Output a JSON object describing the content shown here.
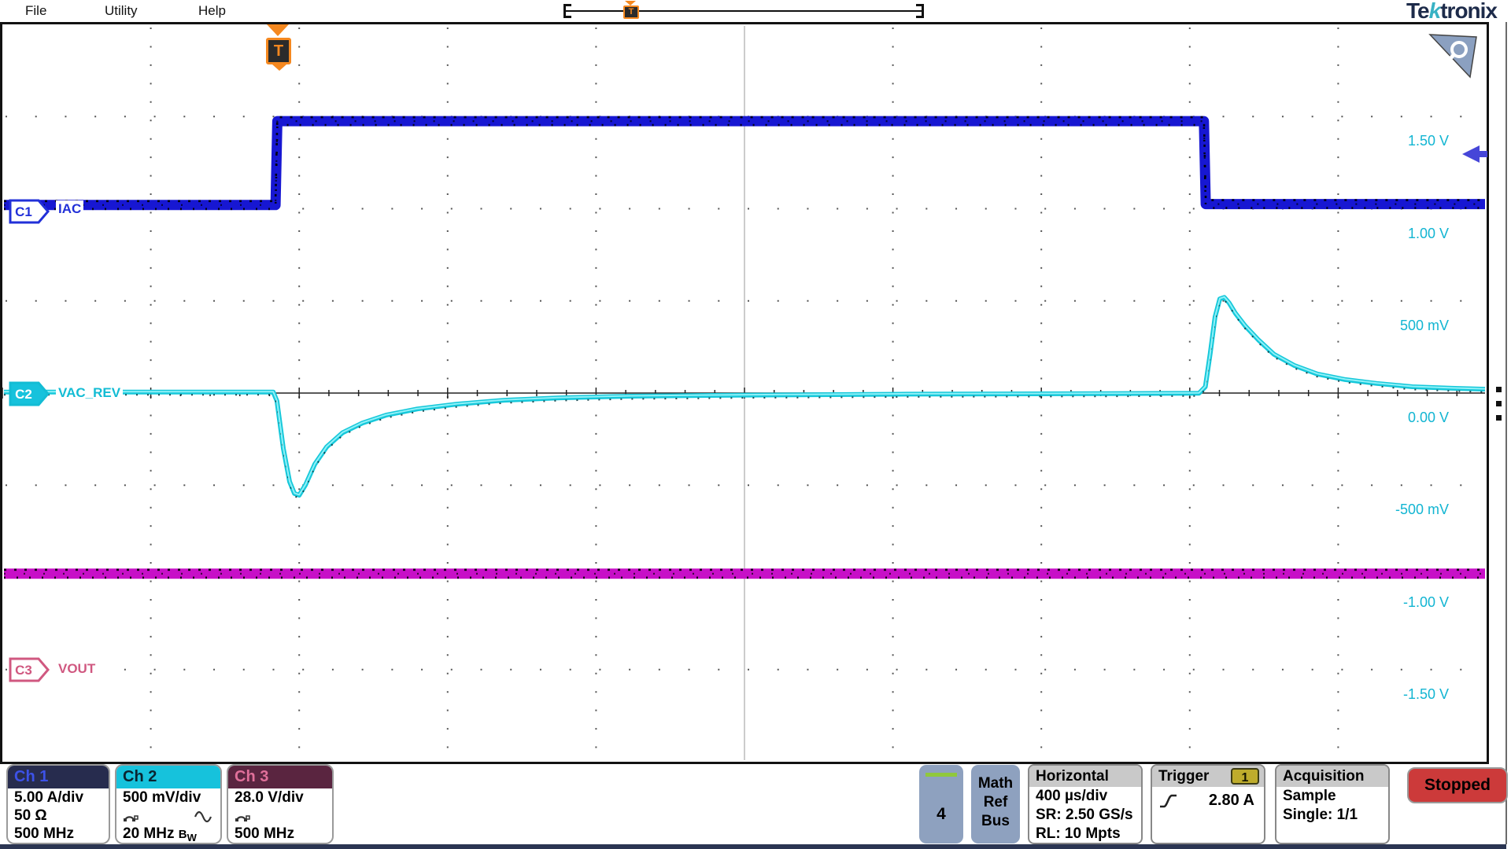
{
  "menu": {
    "items": [
      "File",
      "Utility",
      "Help"
    ]
  },
  "logo": {
    "pre": "Te",
    "k": "k",
    "post": "tronix"
  },
  "overview_bar": {
    "trigger_glyph": "T"
  },
  "graticule": {
    "trigger_glyph": "T",
    "scale_labels": [
      "1.50 V",
      "1.00 V",
      "500 mV",
      "0.00 V",
      "-500 mV",
      "-1.00 V",
      "-1.50 V"
    ],
    "time_per_div": "400 µs/div",
    "divisions": {
      "horizontal": 10,
      "vertical": 8
    }
  },
  "channels": [
    {
      "id": "C1",
      "name": "IAC",
      "header": "Ch 1",
      "rows": [
        "5.00 A/div",
        "50 Ω",
        "500 MHz"
      ],
      "color": "#2230d8",
      "trace": "#1717d2",
      "badge_fill": "#ffffff",
      "badge_text": "#2230d8",
      "header_bg": "#272c4e",
      "header_fg": "#3d52e8"
    },
    {
      "id": "C2",
      "name": "VAC_REV",
      "header": "Ch 2",
      "rows": [
        "500 mV/div",
        "20 MHz"
      ],
      "bw_badge": {
        "main": "B",
        "sub": "W"
      },
      "color": "#13bcd4",
      "trace": "#16c8da",
      "badge_fill": "#16c2dc",
      "badge_text": "#ffffff",
      "header_bg": "#16c2dc",
      "header_fg": "#0a2430"
    },
    {
      "id": "C3",
      "name": "VOUT",
      "header": "Ch 3",
      "rows": [
        "28.0 V/div",
        "500 MHz"
      ],
      "color": "#d05880",
      "trace": "#c710c7",
      "badge_fill": "#ffffff",
      "badge_text": "#d05880",
      "header_bg": "#5a2540",
      "header_fg": "#e0709a"
    }
  ],
  "panels": {
    "add_channel": {
      "label": "4",
      "accent": "#90c83c"
    },
    "math_ref_bus": {
      "lines": [
        "Math",
        "Ref",
        "Bus"
      ]
    },
    "horizontal": {
      "title": "Horizontal",
      "rows": [
        "400 µs/div",
        "SR: 2.50 GS/s",
        "RL: 10 Mpts"
      ]
    },
    "trigger": {
      "title": "Trigger",
      "source_badge": "1",
      "level": "2.80 A",
      "slope": "rising"
    },
    "acquisition": {
      "title": "Acquisition",
      "rows": [
        "Sample",
        "Single: 1/1"
      ]
    },
    "run_state": {
      "label": "Stopped",
      "bg": "#cc3a3a"
    }
  },
  "chart_data": {
    "type": "line",
    "title": "Oscilloscope capture: IAC load step with VAC_REV transient response",
    "x_units": "µs",
    "time_per_div_us": 400,
    "x_range_us": [
      -734,
      3266
    ],
    "trigger_time_us": 0,
    "trigger_level": "2.80 A",
    "series": [
      {
        "name": "IAC",
        "channel": "C1",
        "units": "A",
        "units_per_div": 5.0,
        "position_div": 2.04,
        "color": "#1717d2",
        "width": 13,
        "noise": "heavy",
        "points": [
          [
            -734,
            0
          ],
          [
            -2,
            0
          ],
          [
            3,
            4.55
          ],
          [
            2500,
            4.55
          ],
          [
            2505,
            0.05
          ],
          [
            3266,
            0.05
          ]
        ]
      },
      {
        "name": "VAC_REV",
        "channel": "C2",
        "units": "V",
        "units_per_div": 0.5,
        "position_div": 0,
        "color": "#16c8da",
        "width": 6,
        "noise": "light",
        "points": [
          [
            -734,
            0.005
          ],
          [
            -8,
            0.005
          ],
          [
            2,
            -0.043
          ],
          [
            19,
            -0.3
          ],
          [
            36,
            -0.481
          ],
          [
            49,
            -0.545
          ],
          [
            62,
            -0.554
          ],
          [
            79,
            -0.498
          ],
          [
            104,
            -0.386
          ],
          [
            136,
            -0.292
          ],
          [
            179,
            -0.215
          ],
          [
            232,
            -0.163
          ],
          [
            296,
            -0.12
          ],
          [
            381,
            -0.086
          ],
          [
            487,
            -0.06
          ],
          [
            615,
            -0.039
          ],
          [
            764,
            -0.026
          ],
          [
            955,
            -0.017
          ],
          [
            1274,
            -0.011
          ],
          [
            1700,
            -0.006
          ],
          [
            2232,
            -0.003
          ],
          [
            2487,
            -0.001
          ],
          [
            2504,
            0.034
          ],
          [
            2517,
            0.215
          ],
          [
            2530,
            0.412
          ],
          [
            2543,
            0.511
          ],
          [
            2555,
            0.519
          ],
          [
            2568,
            0.489
          ],
          [
            2585,
            0.433
          ],
          [
            2611,
            0.365
          ],
          [
            2647,
            0.288
          ],
          [
            2689,
            0.21
          ],
          [
            2743,
            0.15
          ],
          [
            2806,
            0.103
          ],
          [
            2881,
            0.073
          ],
          [
            2966,
            0.052
          ],
          [
            3062,
            0.034
          ],
          [
            3168,
            0.026
          ],
          [
            3266,
            0.021
          ]
        ]
      },
      {
        "name": "VOUT",
        "channel": "C3",
        "units": "V",
        "units_per_div": 28.0,
        "position_div": -1.96,
        "color": "#c710c7",
        "width": 13,
        "noise": "heavy",
        "points": [
          [
            -734,
            0
          ],
          [
            3266,
            0
          ]
        ]
      }
    ]
  }
}
